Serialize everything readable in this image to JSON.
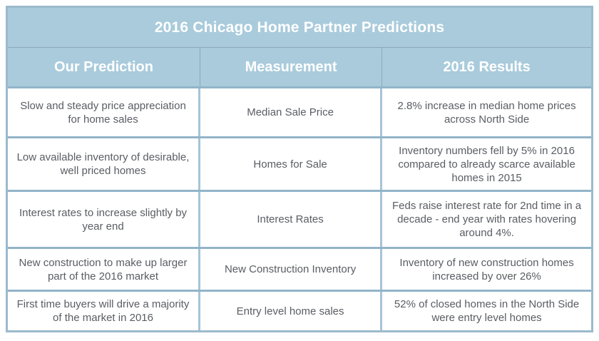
{
  "chart_data": {
    "type": "table",
    "title": "2016 Chicago Home Partner Predictions",
    "columns": [
      "Our Prediction",
      "Measurement",
      "2016 Results"
    ],
    "rows": [
      [
        "Slow and steady price appreciation for home sales",
        "Median Sale Price",
        "2.8% increase in median home prices across North Side"
      ],
      [
        "Low available inventory of desirable, well priced homes",
        "Homes for Sale",
        "Inventory numbers fell by 5% in 2016 compared to already scarce available homes in 2015"
      ],
      [
        "Interest rates to increase slightly by year end",
        "Interest Rates",
        "Feds raise interest rate for 2nd time in a decade - end year with rates hovering around 4%."
      ],
      [
        "New construction to make up larger part of the 2016 market",
        "New Construction Inventory",
        "Inventory of new construction homes increased by over 26%"
      ],
      [
        "First time buyers will drive a majority of the market in 2016",
        "Entry level home sales",
        "52% of closed homes in the North Side were entry level homes"
      ]
    ]
  },
  "colors": {
    "header_bg": "#a9cbdc",
    "header_text": "#ffffff",
    "outer_border": "#9cbacd",
    "row_border": "#92b4c9",
    "column_border": "#a6c4d6",
    "header_divider": "#8da9ba",
    "cell_text": "#595d63",
    "cell_bg": "#ffffff"
  }
}
